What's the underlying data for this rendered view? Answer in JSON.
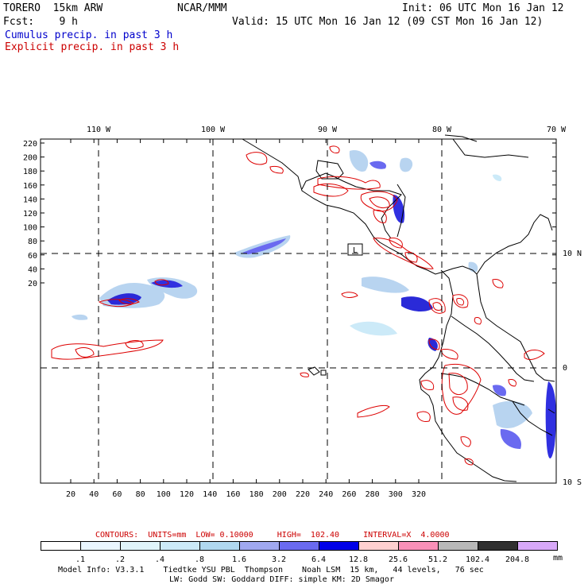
{
  "header": {
    "model": "TORERO  15km ARW",
    "org": "NCAR/MMM",
    "init": "Init: 06 UTC Mon 16 Jan 12",
    "fcst": "Fcst:    9 h",
    "valid": "Valid: 15 UTC Mon 16 Jan 12 (09 CST Mon 16 Jan 12)",
    "legend_cumulus": "Cumulus precip. in past 3 h",
    "legend_explicit": "Explicit precip. in past 3 h"
  },
  "map": {
    "lon_labels": [
      "110 W",
      "100 W",
      "90 W",
      "80 W",
      "70 W"
    ],
    "lat_labels": [
      "10 N",
      "0",
      "10 S"
    ],
    "y_ticks": [
      "220",
      "200",
      "180",
      "160",
      "140",
      "120",
      "100",
      "80",
      "60",
      "40",
      "20"
    ],
    "x_ticks": [
      "20",
      "40",
      "60",
      "80",
      "100",
      "120",
      "140",
      "160",
      "180",
      "200",
      "220",
      "240",
      "260",
      "280",
      "300",
      "320"
    ],
    "low_label": "L",
    "colors": {
      "coast": "#000000",
      "grid": "#000000",
      "contour": "#dd0000",
      "cumulus_light": "#b8d4f0",
      "cumulus_dark": "#2a2ad8"
    }
  },
  "contours_line": "CONTOURS:  UNITS=mm  LOW= 0.10000     HIGH=  102.40     INTERVAL=X  4.0000",
  "colorbar": {
    "colors": [
      "#ffffff",
      "#eaf6ff",
      "#e0f4fa",
      "#cceaf8",
      "#b0d8f0",
      "#a0a8f0",
      "#6a6af0",
      "#0000e8",
      "#ffd0d0",
      "#f890b8",
      "#b8b8b8",
      "#303030",
      "#d8a8f8"
    ],
    "labels": [
      ".1",
      ".2",
      ".4",
      ".8",
      "1.6",
      "3.2",
      "6.4",
      "12.8",
      "25.6",
      "51.2",
      "102.4",
      "204.8"
    ],
    "unit": "mm"
  },
  "footer": {
    "line1": "Model Info: V3.3.1    Tiedtke YSU PBL  Thompson    Noah LSM  15 km,   44 levels,   76 sec",
    "line2": "LW: Godd SW: Goddard DIFF: simple KM: 2D Smagor"
  }
}
